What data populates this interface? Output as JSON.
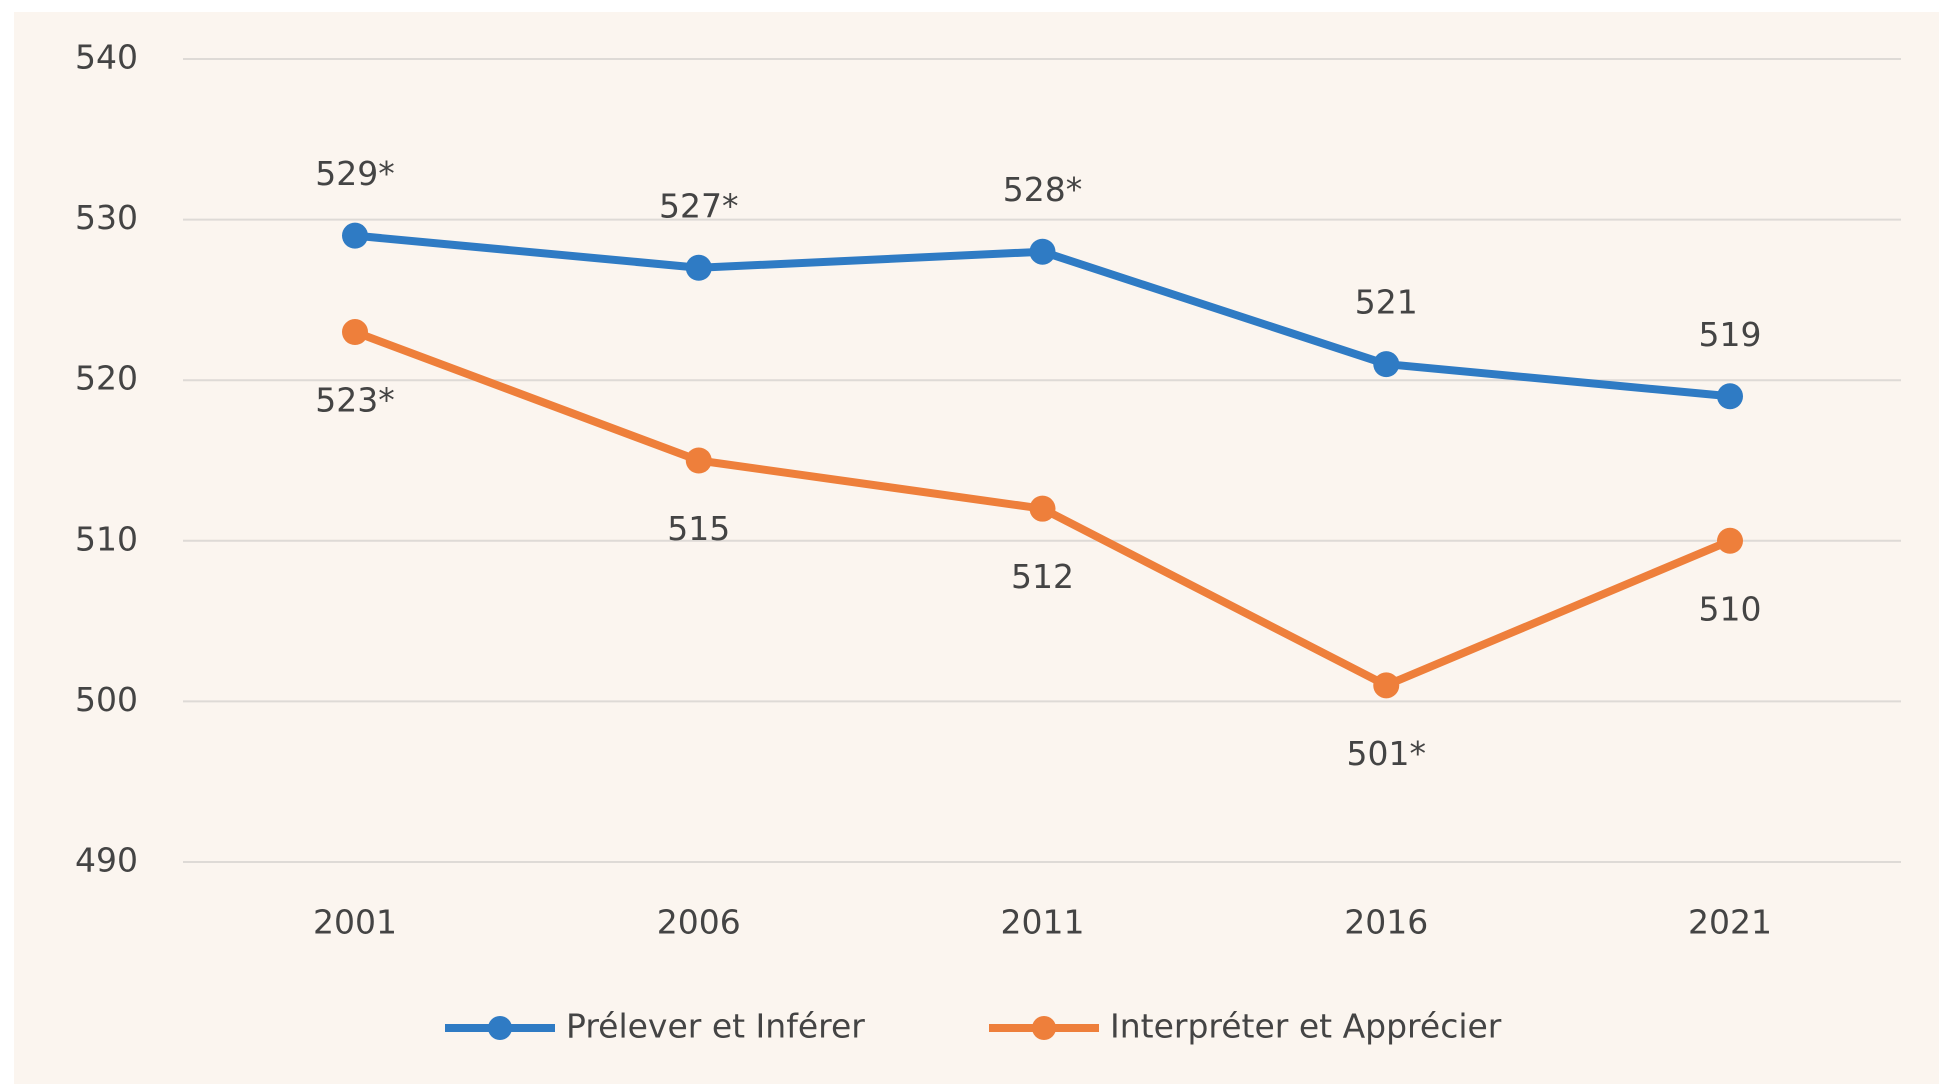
{
  "chart_data": {
    "type": "line",
    "categories": [
      "2001",
      "2006",
      "2011",
      "2016",
      "2021"
    ],
    "series": [
      {
        "name": "Prélever et Inférer",
        "color": "#2f7bc4",
        "values": [
          529,
          527,
          528,
          521,
          519
        ],
        "value_labels": [
          "529*",
          "527*",
          "528*",
          "521",
          "519"
        ]
      },
      {
        "name": "Interpréter et Apprécier",
        "color": "#ee7f3b",
        "values": [
          523,
          515,
          512,
          501,
          510
        ],
        "value_labels": [
          "523*",
          "515",
          "512",
          "501*",
          "510"
        ]
      }
    ],
    "ylim": [
      490,
      540
    ],
    "yticks": [
      490,
      500,
      510,
      520,
      530,
      540
    ],
    "grid": true,
    "legend": "bottom"
  }
}
